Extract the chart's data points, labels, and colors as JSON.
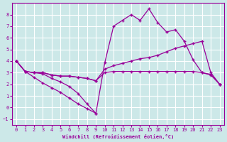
{
  "xlabel": "Windchill (Refroidissement éolien,°C)",
  "background_color": "#cce8e8",
  "grid_color": "#ffffff",
  "line_color": "#990099",
  "xlim": [
    -0.5,
    23.5
  ],
  "ylim": [
    -1.5,
    9.0
  ],
  "xticks": [
    0,
    1,
    2,
    3,
    4,
    5,
    6,
    7,
    8,
    9,
    10,
    11,
    12,
    13,
    14,
    15,
    16,
    17,
    18,
    19,
    20,
    21,
    22,
    23
  ],
  "yticks": [
    -1,
    0,
    1,
    2,
    3,
    4,
    5,
    6,
    7,
    8
  ],
  "lineA_x": [
    0,
    1,
    2,
    3,
    4,
    5,
    6,
    7,
    8,
    9,
    10,
    11,
    12,
    13,
    14,
    15,
    16,
    17,
    18,
    19,
    20,
    21,
    22,
    23
  ],
  "lineA_y": [
    4.0,
    3.1,
    3.0,
    2.9,
    2.5,
    2.2,
    1.8,
    1.2,
    0.3,
    -0.5,
    3.85,
    7.0,
    7.5,
    8.0,
    7.5,
    8.5,
    7.3,
    6.5,
    6.7,
    5.7,
    4.1,
    3.0,
    2.8,
    2.0
  ],
  "lineB_x": [
    0,
    1,
    2,
    3,
    4,
    5,
    6,
    7,
    8,
    9,
    10,
    11,
    12,
    13,
    14,
    15,
    16,
    17,
    18,
    19,
    20,
    21,
    22,
    23
  ],
  "lineB_y": [
    4.0,
    3.1,
    3.0,
    3.0,
    2.8,
    2.7,
    2.7,
    2.6,
    2.5,
    2.3,
    3.3,
    3.6,
    3.8,
    4.0,
    4.2,
    4.3,
    4.5,
    4.8,
    5.1,
    5.3,
    5.5,
    5.7,
    3.0,
    2.0
  ],
  "lineC_x": [
    0,
    1,
    2,
    3,
    4,
    5,
    6,
    7,
    8,
    9,
    10,
    11,
    12,
    13,
    14,
    15,
    16,
    17,
    18,
    19,
    20,
    21,
    22,
    23
  ],
  "lineC_y": [
    4.0,
    3.1,
    3.0,
    3.0,
    2.8,
    2.7,
    2.7,
    2.6,
    2.5,
    2.3,
    3.0,
    3.1,
    3.1,
    3.1,
    3.1,
    3.1,
    3.1,
    3.1,
    3.1,
    3.1,
    3.1,
    3.0,
    2.85,
    2.0
  ],
  "lineD_x": [
    0,
    1,
    2,
    3,
    4,
    5,
    6,
    7,
    8,
    9
  ],
  "lineD_y": [
    4.0,
    3.1,
    2.6,
    2.1,
    1.7,
    1.3,
    0.8,
    0.3,
    -0.1,
    -0.5
  ]
}
